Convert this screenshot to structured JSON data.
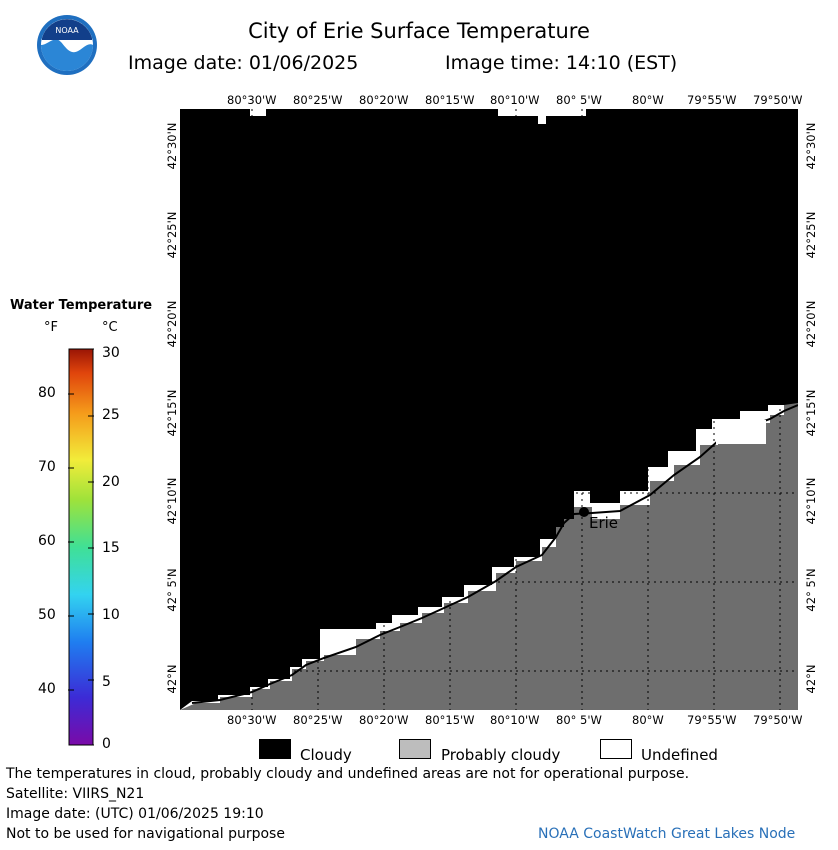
{
  "header": {
    "logo_text": "NOAA",
    "title": "City of Erie Surface Temperature",
    "image_date": "Image date: 01/06/2025",
    "image_time": "Image time: 14:10 (EST)"
  },
  "map": {
    "lon_labels": [
      "80°30'W",
      "80°25'W",
      "80°20'W",
      "80°15'W",
      "80°10'W",
      "80° 5'W",
      "80°W",
      "79°55'W",
      "79°50'W"
    ],
    "lat_labels": [
      "42°30'N",
      "42°25'N",
      "42°20'N",
      "42°15'N",
      "42°10'N",
      "42° 5'N",
      "42°N"
    ],
    "city_label": "Erie",
    "colors": {
      "cloudy": "#000000",
      "land": "#6e6e6e",
      "undefined": "#ffffff"
    }
  },
  "legend": {
    "title": "Water Temperature",
    "unit_f": "°F",
    "unit_c": "°C",
    "f_ticks": [
      "80",
      "70",
      "60",
      "50",
      "40"
    ],
    "c_ticks": [
      "30",
      "25",
      "20",
      "15",
      "10",
      "5",
      "0"
    ]
  },
  "key": {
    "cloudy": "Cloudy",
    "probably_cloudy": "Probably cloudy",
    "undefined": "Undefined"
  },
  "footer": {
    "line1": "The temperatures in cloud, probably cloudy and undefined areas are not for operational purpose.",
    "line2": "Satellite: VIIRS_N21",
    "line3": "Image date: (UTC) 01/06/2025  19:10",
    "line4": "Not to be used for navigational purpose",
    "credit": "NOAA CoastWatch Great Lakes Node"
  }
}
